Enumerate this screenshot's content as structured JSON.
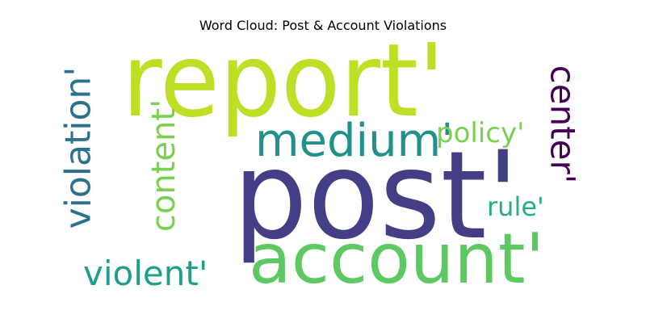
{
  "title": "Word Cloud: Post & Account Violations",
  "words": [
    {
      "text": "report'",
      "color": "#bddf26",
      "orientation": "horizontal",
      "weight": "largest"
    },
    {
      "text": "post'",
      "color": "#433e85",
      "orientation": "horizontal",
      "weight": "largest"
    },
    {
      "text": "account'",
      "color": "#5ec962",
      "orientation": "horizontal",
      "weight": "large"
    },
    {
      "text": "medium'",
      "color": "#21918c",
      "orientation": "horizontal",
      "weight": "medium"
    },
    {
      "text": "violation'",
      "color": "#2c728e",
      "orientation": "vertical",
      "weight": "medium"
    },
    {
      "text": "content'",
      "color": "#7ad151",
      "orientation": "vertical",
      "weight": "medium"
    },
    {
      "text": "center'",
      "color": "#440154",
      "orientation": "vertical",
      "weight": "medium"
    },
    {
      "text": "violent'",
      "color": "#1f9e89",
      "orientation": "horizontal",
      "weight": "small"
    },
    {
      "text": "policy'",
      "color": "#7ad151",
      "orientation": "horizontal",
      "weight": "small"
    },
    {
      "text": "rule'",
      "color": "#28ae80",
      "orientation": "horizontal",
      "weight": "small"
    }
  ]
}
